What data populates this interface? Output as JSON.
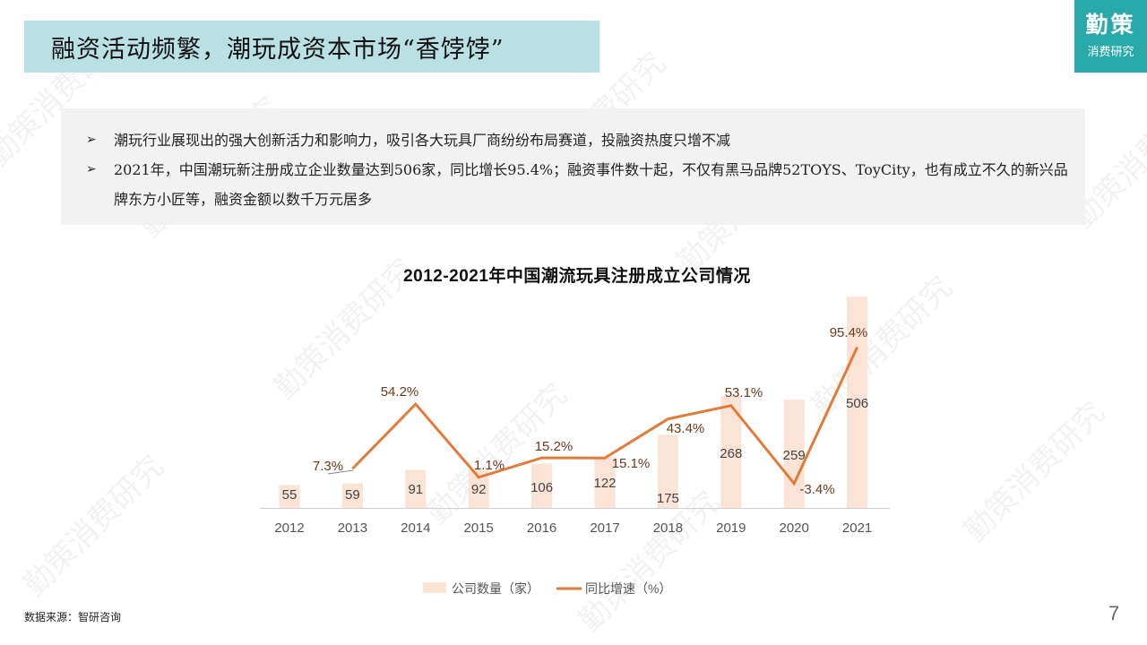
{
  "header": {
    "title": "融资活动频繁，潮玩成资本市场“香饽饽”",
    "brand_line1": "勤策",
    "brand_line2": "消费研究"
  },
  "bullets": [
    {
      "icon": "➢",
      "text": "潮玩行业展现出的强大创新活力和影响力，吸引各大玩具厂商纷纷布局赛道，投融资热度只增不减"
    },
    {
      "icon": "➢",
      "text": "2021年，中国潮玩新注册成立企业数量达到506家，同比增长95.4%；融资事件数十起，不仅有黑马品牌52TOYS、ToyCity，也有成立不久的新兴品牌东方小匠等，融资金额以数千万元居多"
    }
  ],
  "chart_data": {
    "type": "bar",
    "title": "2012-2021年中国潮流玩具注册成立公司情况",
    "categories": [
      "2012",
      "2013",
      "2014",
      "2015",
      "2016",
      "2017",
      "2018",
      "2019",
      "2020",
      "2021"
    ],
    "series": [
      {
        "name": "公司数量（家）",
        "type": "bar",
        "color": "#fbe3d6",
        "values": [
          55,
          59,
          91,
          92,
          106,
          122,
          175,
          268,
          259,
          506
        ]
      },
      {
        "name": "同比增速（%）",
        "type": "line",
        "color": "#e07b39",
        "values": [
          null,
          7.3,
          54.2,
          1.1,
          15.2,
          15.1,
          43.4,
          53.1,
          -3.4,
          95.4
        ]
      }
    ],
    "bar_labels": [
      "55",
      "59",
      "91",
      "92",
      "106",
      "122",
      "175",
      "268",
      "259",
      "506"
    ],
    "line_labels": [
      "",
      "7.3%",
      "54.2%",
      "1.1%",
      "15.2%",
      "15.1%",
      "43.4%",
      "53.1%",
      "-3.4%",
      "95.4%"
    ],
    "xlabel": "",
    "ylabel": "",
    "grid": false,
    "legend_position": "bottom"
  },
  "legend": {
    "bar_label": "公司数量（家）",
    "line_label": "同比增速（%）"
  },
  "footer": {
    "source": "数据来源：智研咨询",
    "page_number": "7"
  },
  "watermark": "勤策消费研究"
}
